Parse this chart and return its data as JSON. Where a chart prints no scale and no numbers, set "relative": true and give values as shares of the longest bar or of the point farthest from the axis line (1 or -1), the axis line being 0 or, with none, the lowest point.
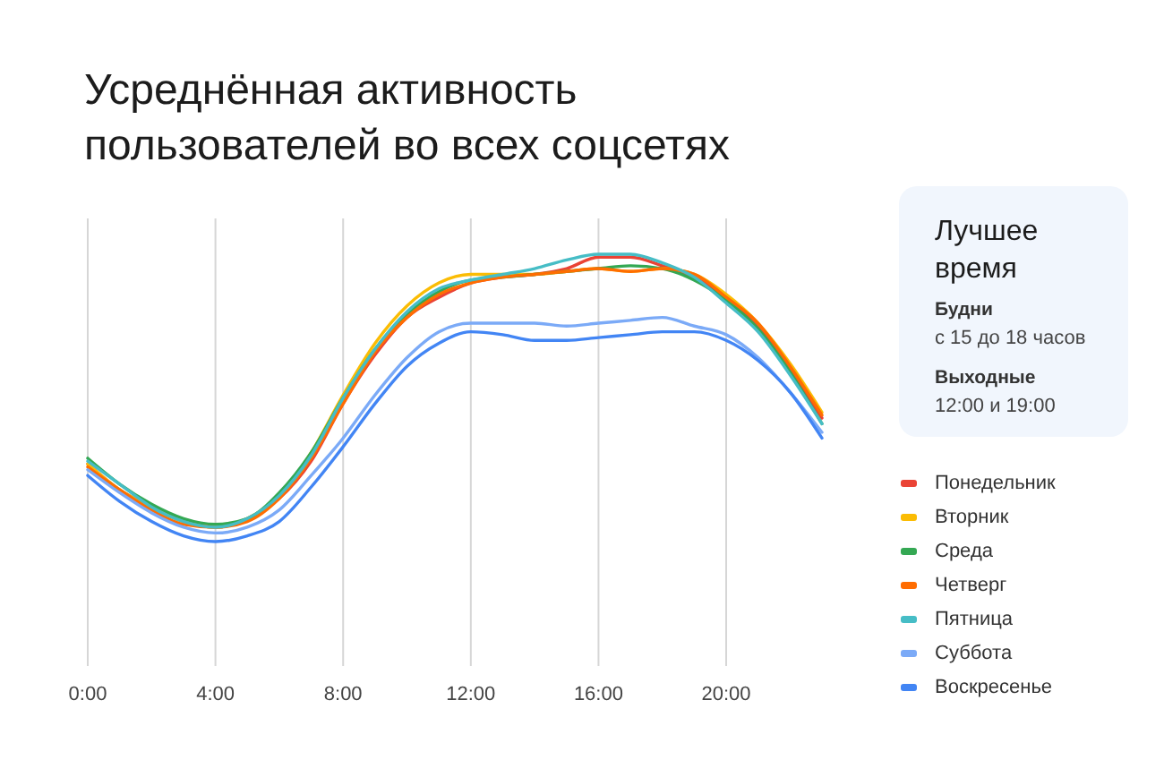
{
  "chart_data": [
    {
      "type": "line",
      "title": "Усреднённая активность пользователей во всех соцсетях",
      "relative": true,
      "grid": "x",
      "legend": "bottom right",
      "categories": [
        "0:00",
        null,
        null,
        null,
        "4:00",
        null,
        null,
        null,
        "8:00",
        null,
        null,
        null,
        "12:00",
        null,
        null,
        null,
        "16:00",
        null,
        null,
        null,
        "20:00",
        null,
        null,
        null
      ],
      "series": [
        {
          "name": "Понедельник",
          "color": "#ea4335",
          "values": [
            0.27,
            0.18,
            0.12,
            0.07,
            0.05,
            0.08,
            0.15,
            0.28,
            0.48,
            0.65,
            0.78,
            0.85,
            0.9,
            0.92,
            0.93,
            0.95,
            0.99,
            0.99,
            0.96,
            0.92,
            0.85,
            0.75,
            0.6,
            0.43
          ]
        },
        {
          "name": "Вторник",
          "color": "#fbbc04",
          "values": [
            0.27,
            0.18,
            0.12,
            0.07,
            0.05,
            0.08,
            0.16,
            0.31,
            0.51,
            0.69,
            0.82,
            0.9,
            0.93,
            0.93,
            0.93,
            0.94,
            0.95,
            0.94,
            0.95,
            0.93,
            0.86,
            0.76,
            0.62,
            0.45
          ]
        },
        {
          "name": "Среда",
          "color": "#34a853",
          "values": [
            0.29,
            0.2,
            0.13,
            0.08,
            0.06,
            0.08,
            0.17,
            0.31,
            0.5,
            0.67,
            0.79,
            0.87,
            0.91,
            0.92,
            0.93,
            0.94,
            0.95,
            0.96,
            0.95,
            0.91,
            0.84,
            0.74,
            0.59,
            0.41
          ]
        },
        {
          "name": "Четверг",
          "color": "#ff6d01",
          "values": [
            0.26,
            0.18,
            0.11,
            0.06,
            0.05,
            0.07,
            0.15,
            0.29,
            0.48,
            0.66,
            0.78,
            0.86,
            0.9,
            0.92,
            0.93,
            0.94,
            0.95,
            0.94,
            0.95,
            0.93,
            0.85,
            0.76,
            0.61,
            0.44
          ]
        },
        {
          "name": "Пятница",
          "color": "#46bdc6",
          "values": [
            0.28,
            0.2,
            0.12,
            0.07,
            0.05,
            0.08,
            0.16,
            0.3,
            0.5,
            0.67,
            0.8,
            0.88,
            0.91,
            0.93,
            0.95,
            0.98,
            1.0,
            1.0,
            0.97,
            0.92,
            0.83,
            0.73,
            0.58,
            0.41
          ]
        },
        {
          "name": "Суббота",
          "color": "#7baaf7",
          "values": [
            0.25,
            0.17,
            0.1,
            0.05,
            0.03,
            0.05,
            0.11,
            0.23,
            0.36,
            0.51,
            0.64,
            0.73,
            0.76,
            0.76,
            0.76,
            0.75,
            0.76,
            0.77,
            0.78,
            0.75,
            0.72,
            0.64,
            0.52,
            0.38
          ]
        },
        {
          "name": "Воскресенье",
          "color": "#4285f4",
          "values": [
            0.23,
            0.14,
            0.07,
            0.02,
            0.0,
            0.02,
            0.07,
            0.19,
            0.33,
            0.48,
            0.61,
            0.69,
            0.73,
            0.72,
            0.7,
            0.7,
            0.71,
            0.72,
            0.73,
            0.73,
            0.7,
            0.63,
            0.52,
            0.36
          ]
        }
      ]
    },
    {
      "type": "other",
      "title": "Лучшее время",
      "annotations": [
        "Будни",
        "с 15 до 18 часов",
        "Выходные",
        "12:00 и 19:00"
      ]
    }
  ]
}
